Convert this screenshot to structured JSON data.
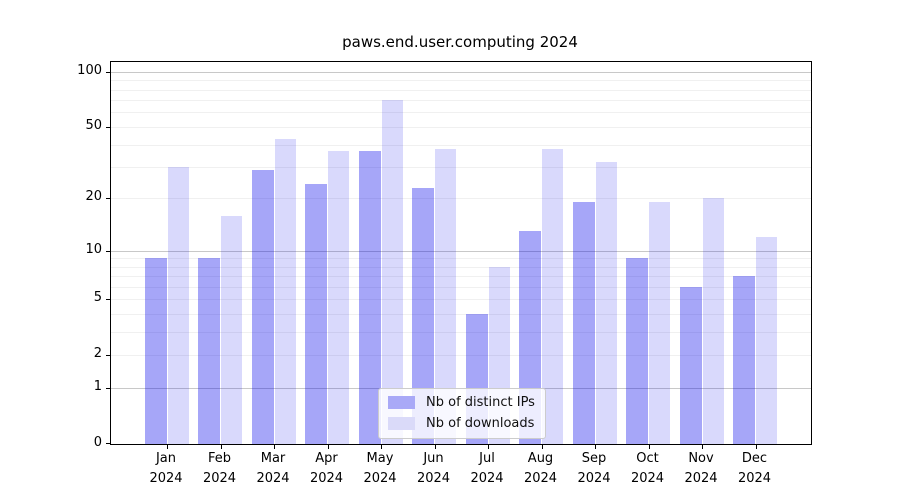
{
  "chart_data": {
    "type": "bar",
    "title": "paws.end.user.computing 2024",
    "categories": [
      "Jan",
      "Feb",
      "Mar",
      "Apr",
      "May",
      "Jun",
      "Jul",
      "Aug",
      "Sep",
      "Oct",
      "Nov",
      "Dec"
    ],
    "year_label": "2024",
    "series": [
      {
        "key": "distinct-ips",
        "name": "Nb of distinct IPs",
        "color": "rgba(0,0,235,0.35)",
        "swatch_color": "#a9a9f7",
        "values": [
          9,
          9,
          29,
          24,
          37,
          23,
          4,
          13,
          19,
          9,
          6,
          7
        ]
      },
      {
        "key": "downloads",
        "name": "Nb of downloads",
        "color": "rgba(0,0,235,0.15)",
        "swatch_color": "#dadaf9",
        "values": [
          30,
          16,
          43,
          37,
          70,
          38,
          8,
          38,
          32,
          19,
          20,
          12
        ]
      }
    ],
    "yscale": "log1p",
    "ylim": [
      0,
      112
    ],
    "yticks": [
      0,
      1,
      2,
      5,
      10,
      20,
      50,
      100
    ],
    "gridlines_minor": [
      2,
      3,
      4,
      5,
      6,
      7,
      8,
      9,
      20,
      30,
      40,
      50,
      60,
      70,
      80,
      90
    ],
    "gridlines_major": [
      1,
      10,
      100
    ],
    "grid": true,
    "legend_position": "lower center",
    "colors": {
      "grid_minor": "#f0f0f0",
      "grid_major": "#c8c8c8",
      "axis": "#000000",
      "background": "#ffffff"
    }
  }
}
